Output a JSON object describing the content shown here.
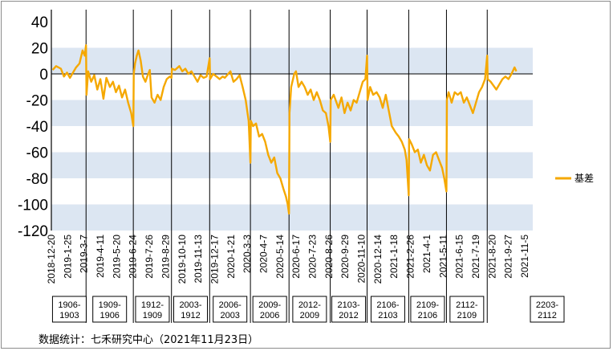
{
  "chart_data": {
    "type": "line",
    "title": "",
    "ylim": [
      -120,
      40
    ],
    "yticks": [
      40,
      20,
      0,
      -20,
      -40,
      -60,
      -80,
      -100,
      -120
    ],
    "x_tick_labels": [
      "2018-12-20",
      "2019-1-25",
      "2019-3-7",
      "2019-4-11",
      "2019-5-20",
      "2019-6-24",
      "2019-7-26",
      "2019-8-29",
      "2019-10-10",
      "2019-11-13",
      "2019-12-17",
      "2020-1-21",
      "2020-3-3",
      "2020-4-7",
      "2020-5-14",
      "2020-6-17",
      "2020-7-23",
      "2020-8-26",
      "2020-9-29",
      "2020-11-10",
      "2020-12-14",
      "2021-1-18",
      "2021-2-26",
      "2021-4-1",
      "2021-5-11",
      "2021-6-15",
      "2021-7-19",
      "2021-8-20",
      "2021-9-27",
      "2021-11-5"
    ],
    "legend_position": "right",
    "bands": "alternating light-blue horizontal bands",
    "contract_periods": [
      {
        "label": "1906-1903",
        "start": "2018-12-20",
        "end": "2019-3-7"
      },
      {
        "label": "1909-1906",
        "start": "2019-3-7",
        "end": "2019-6-24"
      },
      {
        "label": "1912-1909",
        "start": "2019-6-24",
        "end": "2019-9-20"
      },
      {
        "label": "2003-1912",
        "start": "2019-9-20",
        "end": "2019-12-17"
      },
      {
        "label": "2006-2003",
        "start": "2019-12-17",
        "end": "2020-3-20"
      },
      {
        "label": "2009-2006",
        "start": "2020-3-20",
        "end": "2020-6-17"
      },
      {
        "label": "2012-2009",
        "start": "2020-6-17",
        "end": "2020-9-20"
      },
      {
        "label": "2103-2012",
        "start": "2020-9-20",
        "end": "2020-12-14"
      },
      {
        "label": "2106-2103",
        "start": "2020-12-14",
        "end": "2021-3-20"
      },
      {
        "label": "2109-2106",
        "start": "2021-3-20",
        "end": "2021-6-15"
      },
      {
        "label": "2112-2109",
        "start": "2021-6-15",
        "end": "2021-9-17"
      },
      {
        "label": "2203-2112",
        "start": "2021-9-17",
        "end": "2021-11-23"
      }
    ],
    "series": [
      {
        "name": "基差",
        "color": "#f5a800",
        "data": [
          {
            "x": "2018-12-20",
            "y": 3
          },
          {
            "x": "2018-12-28",
            "y": 6
          },
          {
            "x": "2019-1-8",
            "y": 4
          },
          {
            "x": "2019-1-15",
            "y": -2
          },
          {
            "x": "2019-1-22",
            "y": 1
          },
          {
            "x": "2019-1-29",
            "y": -3
          },
          {
            "x": "2019-2-12",
            "y": 5
          },
          {
            "x": "2019-2-20",
            "y": 8
          },
          {
            "x": "2019-2-27",
            "y": 18
          },
          {
            "x": "2019-3-4",
            "y": 14
          },
          {
            "x": "2019-3-7",
            "y": 22
          },
          {
            "x": "2019-3-8",
            "y": -16
          },
          {
            "x": "2019-3-12",
            "y": 2
          },
          {
            "x": "2019-3-19",
            "y": -6
          },
          {
            "x": "2019-3-26",
            "y": -1
          },
          {
            "x": "2019-4-2",
            "y": -12
          },
          {
            "x": "2019-4-9",
            "y": -4
          },
          {
            "x": "2019-4-16",
            "y": -19
          },
          {
            "x": "2019-4-23",
            "y": -3
          },
          {
            "x": "2019-5-1",
            "y": -10
          },
          {
            "x": "2019-5-8",
            "y": -6
          },
          {
            "x": "2019-5-15",
            "y": -14
          },
          {
            "x": "2019-5-22",
            "y": -9
          },
          {
            "x": "2019-5-29",
            "y": -18
          },
          {
            "x": "2019-6-5",
            "y": -12
          },
          {
            "x": "2019-6-12",
            "y": -22
          },
          {
            "x": "2019-6-19",
            "y": -30
          },
          {
            "x": "2019-6-24",
            "y": -40
          },
          {
            "x": "2019-6-25",
            "y": 0
          },
          {
            "x": "2019-6-28",
            "y": 8
          },
          {
            "x": "2019-7-2",
            "y": 14
          },
          {
            "x": "2019-7-6",
            "y": 18
          },
          {
            "x": "2019-7-11",
            "y": 10
          },
          {
            "x": "2019-7-16",
            "y": -2
          },
          {
            "x": "2019-7-22",
            "y": -6
          },
          {
            "x": "2019-7-26",
            "y": -2
          },
          {
            "x": "2019-8-1",
            "y": 3
          },
          {
            "x": "2019-8-5",
            "y": -18
          },
          {
            "x": "2019-8-12",
            "y": -22
          },
          {
            "x": "2019-8-19",
            "y": -16
          },
          {
            "x": "2019-8-26",
            "y": -20
          },
          {
            "x": "2019-9-2",
            "y": -10
          },
          {
            "x": "2019-9-9",
            "y": -4
          },
          {
            "x": "2019-9-16",
            "y": -2
          },
          {
            "x": "2019-9-20",
            "y": -3
          },
          {
            "x": "2019-9-21",
            "y": 4
          },
          {
            "x": "2019-9-28",
            "y": 3
          },
          {
            "x": "2019-10-8",
            "y": 6
          },
          {
            "x": "2019-10-15",
            "y": 2
          },
          {
            "x": "2019-10-22",
            "y": 4
          },
          {
            "x": "2019-10-29",
            "y": 0
          },
          {
            "x": "2019-11-5",
            "y": 2
          },
          {
            "x": "2019-11-12",
            "y": -2
          },
          {
            "x": "2019-11-19",
            "y": -6
          },
          {
            "x": "2019-11-26",
            "y": -1
          },
          {
            "x": "2019-12-3",
            "y": -3
          },
          {
            "x": "2019-12-10",
            "y": -2
          },
          {
            "x": "2019-12-17",
            "y": 12
          },
          {
            "x": "2019-12-18",
            "y": -4
          },
          {
            "x": "2019-12-25",
            "y": 0
          },
          {
            "x": "2020-1-2",
            "y": -2
          },
          {
            "x": "2020-1-9",
            "y": -4
          },
          {
            "x": "2020-1-16",
            "y": -2
          },
          {
            "x": "2020-1-21",
            "y": -3
          },
          {
            "x": "2020-2-3",
            "y": 2
          },
          {
            "x": "2020-2-10",
            "y": -6
          },
          {
            "x": "2020-2-17",
            "y": -4
          },
          {
            "x": "2020-2-24",
            "y": -1
          },
          {
            "x": "2020-3-2",
            "y": -10
          },
          {
            "x": "2020-3-9",
            "y": -20
          },
          {
            "x": "2020-3-16",
            "y": -36
          },
          {
            "x": "2020-3-20",
            "y": -68
          },
          {
            "x": "2020-3-21",
            "y": -36
          },
          {
            "x": "2020-3-26",
            "y": -40
          },
          {
            "x": "2020-4-2",
            "y": -38
          },
          {
            "x": "2020-4-9",
            "y": -48
          },
          {
            "x": "2020-4-16",
            "y": -46
          },
          {
            "x": "2020-4-23",
            "y": -52
          },
          {
            "x": "2020-4-30",
            "y": -62
          },
          {
            "x": "2020-5-7",
            "y": -68
          },
          {
            "x": "2020-5-14",
            "y": -64
          },
          {
            "x": "2020-5-21",
            "y": -76
          },
          {
            "x": "2020-5-28",
            "y": -80
          },
          {
            "x": "2020-6-4",
            "y": -88
          },
          {
            "x": "2020-6-10",
            "y": -94
          },
          {
            "x": "2020-6-14",
            "y": -100
          },
          {
            "x": "2020-6-17",
            "y": -107
          },
          {
            "x": "2020-6-18",
            "y": -30
          },
          {
            "x": "2020-6-22",
            "y": -10
          },
          {
            "x": "2020-6-29",
            "y": 0
          },
          {
            "x": "2020-7-3",
            "y": 2
          },
          {
            "x": "2020-7-9",
            "y": -10
          },
          {
            "x": "2020-7-16",
            "y": -6
          },
          {
            "x": "2020-7-23",
            "y": -10
          },
          {
            "x": "2020-7-30",
            "y": -16
          },
          {
            "x": "2020-8-6",
            "y": -12
          },
          {
            "x": "2020-8-13",
            "y": -20
          },
          {
            "x": "2020-8-20",
            "y": -14
          },
          {
            "x": "2020-8-27",
            "y": -20
          },
          {
            "x": "2020-9-3",
            "y": -28
          },
          {
            "x": "2020-9-10",
            "y": -30
          },
          {
            "x": "2020-9-16",
            "y": -40
          },
          {
            "x": "2020-9-20",
            "y": -52
          },
          {
            "x": "2020-9-21",
            "y": -20
          },
          {
            "x": "2020-9-28",
            "y": -16
          },
          {
            "x": "2020-10-9",
            "y": -26
          },
          {
            "x": "2020-10-16",
            "y": -18
          },
          {
            "x": "2020-10-23",
            "y": -30
          },
          {
            "x": "2020-10-30",
            "y": -22
          },
          {
            "x": "2020-11-6",
            "y": -28
          },
          {
            "x": "2020-11-13",
            "y": -20
          },
          {
            "x": "2020-11-20",
            "y": -22
          },
          {
            "x": "2020-11-27",
            "y": -14
          },
          {
            "x": "2020-12-4",
            "y": -6
          },
          {
            "x": "2020-12-10",
            "y": -4
          },
          {
            "x": "2020-12-14",
            "y": 14
          },
          {
            "x": "2020-12-15",
            "y": -20
          },
          {
            "x": "2020-12-21",
            "y": -10
          },
          {
            "x": "2020-12-28",
            "y": -16
          },
          {
            "x": "2021-1-5",
            "y": -14
          },
          {
            "x": "2021-1-12",
            "y": -18
          },
          {
            "x": "2021-1-19",
            "y": -26
          },
          {
            "x": "2021-1-26",
            "y": -16
          },
          {
            "x": "2021-2-2",
            "y": -28
          },
          {
            "x": "2021-2-9",
            "y": -40
          },
          {
            "x": "2021-2-18",
            "y": -45
          },
          {
            "x": "2021-2-25",
            "y": -48
          },
          {
            "x": "2021-3-4",
            "y": -52
          },
          {
            "x": "2021-3-11",
            "y": -58
          },
          {
            "x": "2021-3-15",
            "y": -66
          },
          {
            "x": "2021-3-20",
            "y": -93
          },
          {
            "x": "2021-3-21",
            "y": -50
          },
          {
            "x": "2021-3-27",
            "y": -54
          },
          {
            "x": "2021-4-3",
            "y": -60
          },
          {
            "x": "2021-4-10",
            "y": -58
          },
          {
            "x": "2021-4-17",
            "y": -68
          },
          {
            "x": "2021-4-24",
            "y": -62
          },
          {
            "x": "2021-5-1",
            "y": -70
          },
          {
            "x": "2021-5-8",
            "y": -74
          },
          {
            "x": "2021-5-15",
            "y": -62
          },
          {
            "x": "2021-5-22",
            "y": -60
          },
          {
            "x": "2021-5-29",
            "y": -66
          },
          {
            "x": "2021-6-5",
            "y": -72
          },
          {
            "x": "2021-6-10",
            "y": -80
          },
          {
            "x": "2021-6-15",
            "y": -90
          },
          {
            "x": "2021-6-16",
            "y": -20
          },
          {
            "x": "2021-6-20",
            "y": -14
          },
          {
            "x": "2021-6-27",
            "y": -22
          },
          {
            "x": "2021-7-4",
            "y": -14
          },
          {
            "x": "2021-7-11",
            "y": -16
          },
          {
            "x": "2021-7-18",
            "y": -14
          },
          {
            "x": "2021-7-25",
            "y": -22
          },
          {
            "x": "2021-8-1",
            "y": -18
          },
          {
            "x": "2021-8-8",
            "y": -24
          },
          {
            "x": "2021-8-15",
            "y": -30
          },
          {
            "x": "2021-8-22",
            "y": -22
          },
          {
            "x": "2021-8-29",
            "y": -14
          },
          {
            "x": "2021-9-5",
            "y": -10
          },
          {
            "x": "2021-9-12",
            "y": -4
          },
          {
            "x": "2021-9-17",
            "y": 14
          },
          {
            "x": "2021-9-18",
            "y": -4
          },
          {
            "x": "2021-9-25",
            "y": -6
          },
          {
            "x": "2021-10-8",
            "y": -12
          },
          {
            "x": "2021-10-15",
            "y": -8
          },
          {
            "x": "2021-10-22",
            "y": -4
          },
          {
            "x": "2021-10-29",
            "y": -2
          },
          {
            "x": "2021-11-5",
            "y": -4
          },
          {
            "x": "2021-11-12",
            "y": 0
          },
          {
            "x": "2021-11-19",
            "y": 5
          },
          {
            "x": "2021-11-23",
            "y": 2
          }
        ]
      }
    ]
  },
  "source": "数据统计：七禾研究中心（2021年11月23日）"
}
